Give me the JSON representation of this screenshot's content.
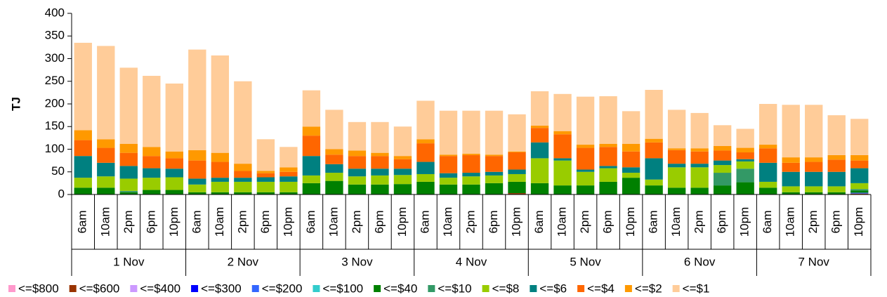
{
  "chart_data": {
    "type": "stacked-bar",
    "y_label": "TJ",
    "categories": [
      "6am",
      "10am",
      "2pm",
      "6pm",
      "10pm",
      "6am",
      "10am",
      "2pm",
      "6pm",
      "10pm",
      "6am",
      "10am",
      "2pm",
      "6pm",
      "10pm",
      "6am",
      "10am",
      "2pm",
      "6pm",
      "10pm",
      "6am",
      "10am",
      "2pm",
      "6pm",
      "10pm",
      "6am",
      "10am",
      "2pm",
      "6pm",
      "10pm",
      "6am",
      "10am",
      "2pm",
      "6pm",
      "10pm"
    ],
    "groups": [
      "1 Nov",
      "2 Nov",
      "3 Nov",
      "4 Nov",
      "5 Nov",
      "6 Nov",
      "7 Nov"
    ],
    "ylim": [
      0,
      400
    ],
    "yticks": [
      0,
      50,
      100,
      150,
      200,
      250,
      300,
      350,
      400
    ],
    "grid": false,
    "series": [
      {
        "name": "<=$800",
        "color": "#ff99cc",
        "values": [
          0,
          0,
          0,
          0,
          0,
          0,
          0,
          0,
          0,
          0,
          0,
          0,
          0,
          0,
          0,
          0,
          0,
          0,
          0,
          0,
          0,
          0,
          0,
          0,
          0,
          0,
          0,
          0,
          0,
          0,
          0,
          0,
          0,
          0,
          0
        ]
      },
      {
        "name": "<=$600",
        "color": "#993300",
        "values": [
          0,
          0,
          0,
          0,
          0,
          0,
          0,
          0,
          0,
          0,
          0,
          0,
          0,
          0,
          0,
          0,
          0,
          0,
          0,
          3,
          0,
          0,
          0,
          0,
          0,
          0,
          0,
          0,
          0,
          0,
          0,
          0,
          0,
          0,
          2
        ]
      },
      {
        "name": "<=$400",
        "color": "#cc99ff",
        "values": [
          0,
          0,
          0,
          0,
          0,
          0,
          0,
          0,
          0,
          0,
          0,
          0,
          0,
          0,
          0,
          0,
          0,
          0,
          0,
          0,
          0,
          0,
          0,
          0,
          0,
          0,
          0,
          0,
          0,
          0,
          0,
          0,
          0,
          0,
          0
        ]
      },
      {
        "name": "<=$300",
        "color": "#0000ff",
        "values": [
          0,
          0,
          0,
          0,
          0,
          0,
          0,
          0,
          0,
          0,
          0,
          0,
          0,
          0,
          0,
          0,
          0,
          0,
          0,
          0,
          0,
          0,
          0,
          0,
          0,
          0,
          0,
          0,
          0,
          0,
          0,
          0,
          0,
          0,
          0
        ]
      },
      {
        "name": "<=$200",
        "color": "#3366ff",
        "values": [
          0,
          0,
          0,
          0,
          0,
          0,
          0,
          0,
          0,
          0,
          0,
          0,
          0,
          0,
          0,
          0,
          0,
          0,
          0,
          0,
          0,
          0,
          0,
          0,
          0,
          0,
          0,
          0,
          0,
          0,
          0,
          0,
          0,
          0,
          2
        ]
      },
      {
        "name": "<=$100",
        "color": "#33cccc",
        "values": [
          0,
          0,
          0,
          0,
          0,
          0,
          0,
          0,
          0,
          0,
          0,
          0,
          0,
          0,
          0,
          0,
          0,
          0,
          0,
          0,
          0,
          0,
          0,
          0,
          0,
          0,
          0,
          0,
          0,
          0,
          0,
          0,
          0,
          0,
          0
        ]
      },
      {
        "name": "<=$40",
        "color": "#008000",
        "values": [
          15,
          15,
          5,
          10,
          10,
          5,
          5,
          5,
          5,
          5,
          25,
          30,
          22,
          22,
          23,
          28,
          22,
          22,
          25,
          25,
          25,
          20,
          20,
          28,
          37,
          20,
          15,
          15,
          20,
          27,
          15,
          5,
          5,
          5,
          5
        ]
      },
      {
        "name": "<=$10",
        "color": "#339966",
        "values": [
          0,
          0,
          3,
          0,
          0,
          0,
          0,
          0,
          0,
          0,
          0,
          0,
          0,
          0,
          0,
          0,
          0,
          0,
          0,
          0,
          0,
          0,
          0,
          0,
          0,
          0,
          0,
          0,
          28,
          30,
          0,
          0,
          0,
          0,
          3
        ]
      },
      {
        "name": "<=$8",
        "color": "#99cc00",
        "values": [
          22,
          25,
          27,
          27,
          28,
          17,
          23,
          23,
          23,
          23,
          17,
          18,
          18,
          20,
          20,
          17,
          15,
          18,
          17,
          17,
          55,
          55,
          30,
          30,
          11,
          13,
          45,
          45,
          17,
          16,
          13,
          13,
          13,
          13,
          13
        ]
      },
      {
        "name": "<=$6",
        "color": "#008080",
        "values": [
          48,
          30,
          28,
          21,
          19,
          13,
          9,
          9,
          10,
          12,
          43,
          19,
          17,
          15,
          14,
          27,
          10,
          8,
          8,
          10,
          35,
          5,
          5,
          5,
          12,
          47,
          8,
          8,
          10,
          5,
          42,
          32,
          32,
          32,
          33
        ]
      },
      {
        "name": "<=$4",
        "color": "#ff6600",
        "values": [
          35,
          33,
          29,
          27,
          23,
          40,
          35,
          15,
          9,
          10,
          45,
          21,
          28,
          28,
          21,
          41,
          38,
          39,
          35,
          38,
          32,
          53,
          48,
          42,
          35,
          35,
          30,
          27,
          22,
          15,
          32,
          20,
          22,
          27,
          17
        ]
      },
      {
        "name": "<=$2",
        "color": "#ff9900",
        "values": [
          22,
          19,
          20,
          20,
          15,
          23,
          20,
          16,
          5,
          10,
          20,
          12,
          12,
          7,
          7,
          9,
          3,
          3,
          3,
          2,
          5,
          7,
          7,
          7,
          17,
          8,
          4,
          7,
          10,
          10,
          8,
          12,
          10,
          10,
          12
        ]
      },
      {
        "name": "<=$1",
        "color": "#ffcc99",
        "values": [
          193,
          206,
          168,
          157,
          150,
          222,
          215,
          182,
          70,
          45,
          80,
          87,
          63,
          68,
          65,
          85,
          97,
          95,
          97,
          82,
          76,
          82,
          106,
          105,
          72,
          108,
          85,
          78,
          46,
          42,
          90,
          116,
          116,
          88,
          80
        ]
      }
    ]
  }
}
